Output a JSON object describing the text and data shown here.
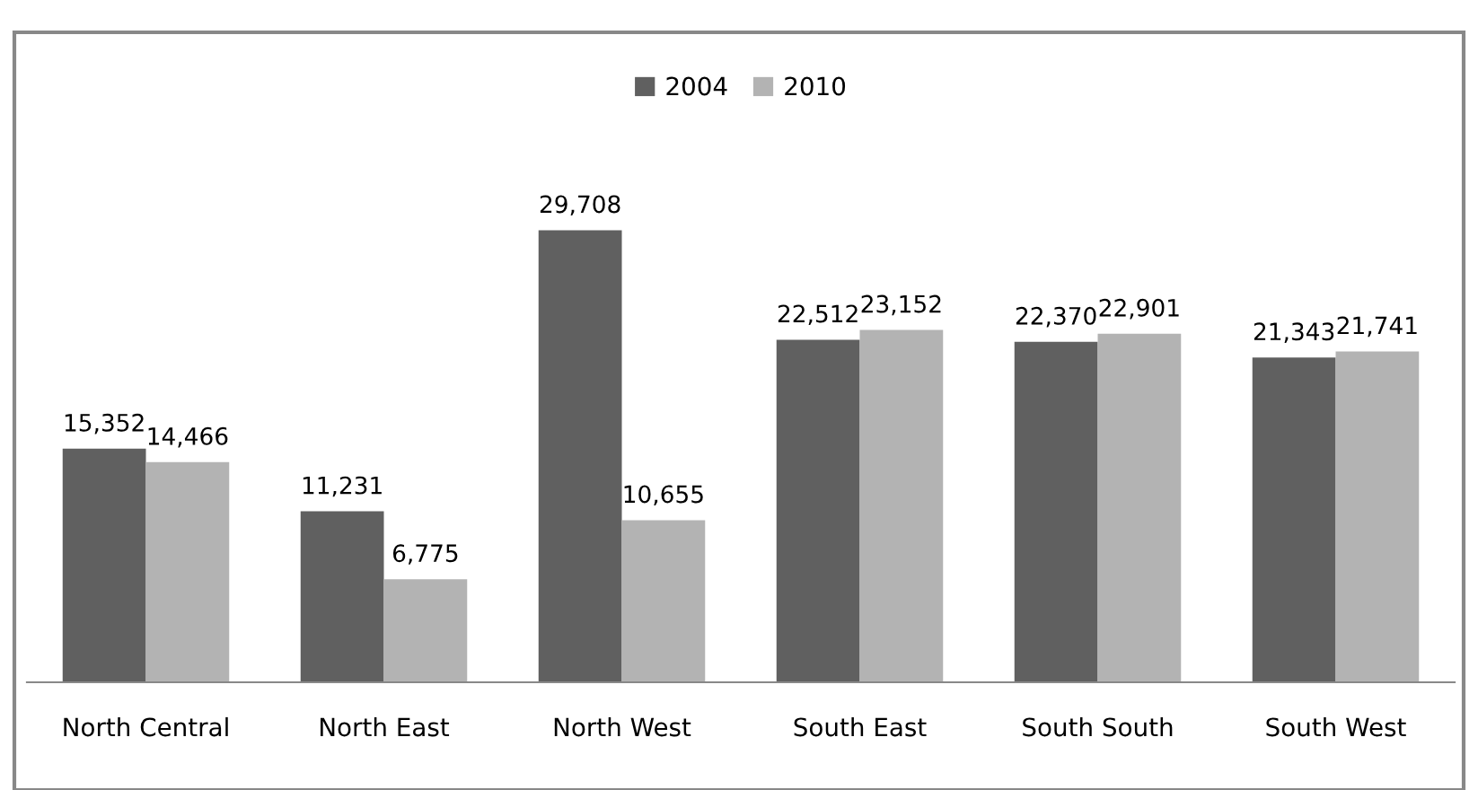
{
  "chart_data": {
    "type": "bar",
    "categories": [
      "North Central",
      "North East",
      "North West",
      "South East",
      "South South",
      "South West"
    ],
    "series": [
      {
        "name": "2004",
        "color": "#606060",
        "values": [
          15352,
          11231,
          29708,
          22512,
          22370,
          21343
        ],
        "value_labels": [
          "15,352",
          "11,231",
          "29,708",
          "22,512",
          "22,370",
          "21,343"
        ]
      },
      {
        "name": "2010",
        "color": "#b3b3b3",
        "values": [
          14466,
          6775,
          10655,
          23152,
          22901,
          21741
        ],
        "value_labels": [
          "14,466",
          "6,775",
          "10,655",
          "23,152",
          "22,901",
          "21,741"
        ]
      }
    ],
    "legend": "top",
    "grid": false
  }
}
